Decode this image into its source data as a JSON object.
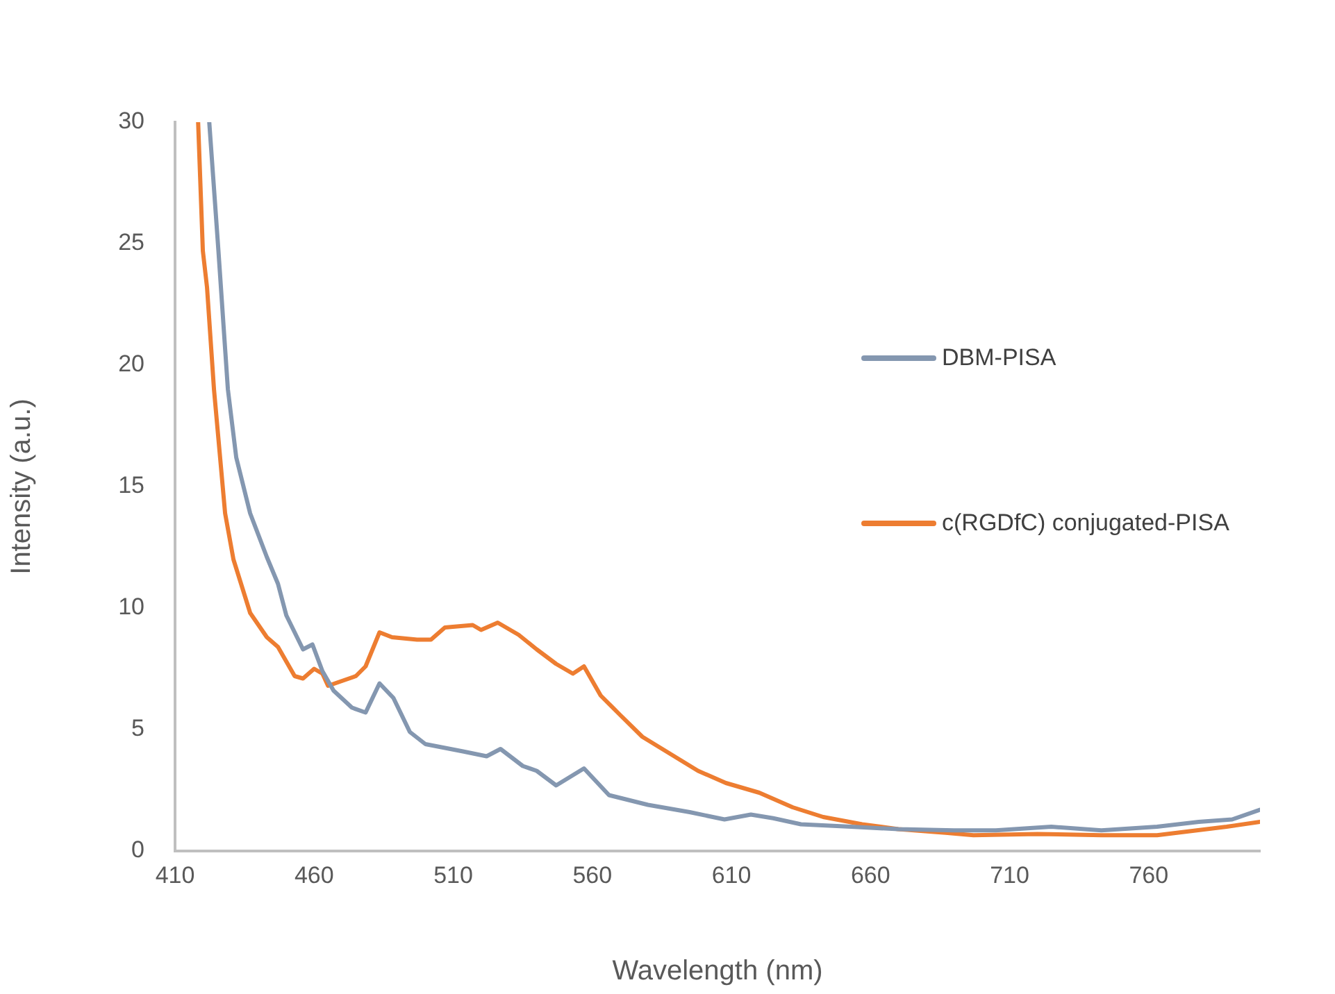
{
  "chart_data": {
    "type": "line",
    "xlabel": "Wavelength (nm)",
    "ylabel": "Intensity (a.u.)",
    "xlim": [
      410,
      800
    ],
    "xticks": [
      410,
      460,
      510,
      560,
      610,
      660,
      710,
      760
    ],
    "ylim": [
      0,
      30
    ],
    "yticks": [
      0,
      5,
      10,
      15,
      20,
      25,
      30
    ],
    "grid": false,
    "legend": "right",
    "marker": "none",
    "line_style": "solid",
    "series": [
      {
        "name": "DBM-PISA",
        "color": "#8497b0",
        "x": [
          422.3,
          425.6,
          429,
          432,
          437,
          443,
          447,
          450,
          456,
          459.4,
          463,
          467,
          473.6,
          478.5,
          483.5,
          488.5,
          494.4,
          500,
          513.5,
          522,
          527,
          535,
          540,
          547,
          557,
          566,
          580,
          595,
          607.5,
          617,
          625,
          635,
          653,
          670,
          690,
          705,
          725,
          743,
          763,
          778,
          790,
          800
        ],
        "values": [
          30,
          24.7,
          19,
          16.2,
          13.9,
          12.1,
          11.0,
          9.7,
          8.3,
          8.5,
          7.4,
          6.6,
          5.9,
          5.7,
          6.9,
          6.3,
          4.9,
          4.4,
          4.1,
          3.9,
          4.2,
          3.5,
          3.3,
          2.7,
          3.4,
          2.3,
          1.9,
          1.6,
          1.3,
          1.5,
          1.35,
          1.1,
          1.0,
          0.9,
          0.85,
          0.85,
          1.0,
          0.85,
          1.0,
          1.2,
          1.3,
          1.7
        ]
      },
      {
        "name": "c(RGDfC) conjugated-PISA",
        "color": "#ed7d31",
        "x": [
          418.3,
          420,
          421.5,
          424,
          428,
          431,
          437,
          443,
          447,
          453,
          456,
          460,
          463,
          465,
          470,
          475,
          478.5,
          483.5,
          488,
          497,
          502,
          507,
          517,
          520,
          526,
          533.5,
          540,
          547,
          553,
          557,
          563,
          570,
          578,
          588,
          598,
          608,
          620,
          632,
          643,
          657,
          670,
          687,
          697,
          720,
          743,
          763,
          788,
          800
        ],
        "values": [
          30,
          24.7,
          23.2,
          19,
          13.9,
          12.0,
          9.8,
          8.8,
          8.4,
          7.2,
          7.1,
          7.5,
          7.3,
          6.8,
          7.0,
          7.2,
          7.6,
          9.0,
          8.8,
          8.7,
          8.7,
          9.2,
          9.3,
          9.1,
          9.4,
          8.9,
          8.3,
          7.7,
          7.3,
          7.6,
          6.4,
          5.6,
          4.7,
          4.0,
          3.3,
          2.8,
          2.4,
          1.8,
          1.4,
          1.1,
          0.9,
          0.75,
          0.65,
          0.7,
          0.65,
          0.65,
          1.0,
          1.2
        ]
      }
    ]
  }
}
